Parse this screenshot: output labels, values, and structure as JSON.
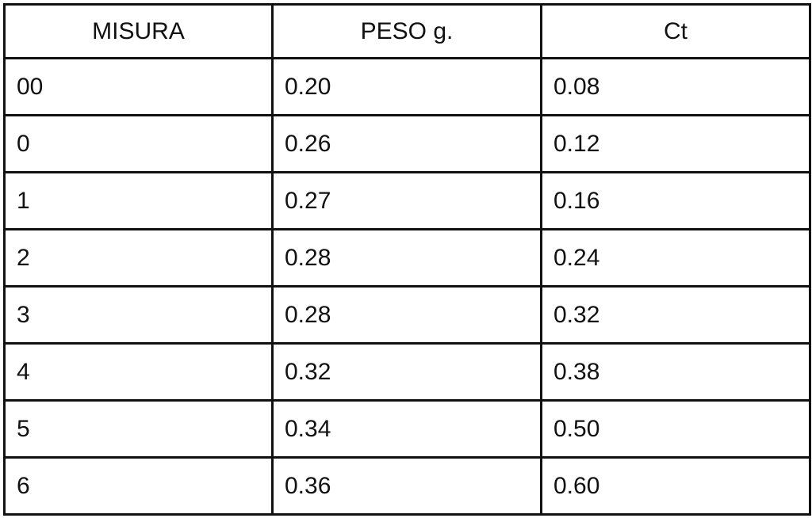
{
  "table": {
    "headers": [
      "MISURA",
      "PESO g.",
      "Ct"
    ],
    "rows": [
      [
        "00",
        "0.20",
        "0.08"
      ],
      [
        "0",
        "0.26",
        "0.12"
      ],
      [
        "1",
        "0.27",
        "0.16"
      ],
      [
        "2",
        "0.28",
        "0.24"
      ],
      [
        "3",
        "0.28",
        "0.32"
      ],
      [
        "4",
        "0.32",
        "0.38"
      ],
      [
        "5",
        "0.34",
        "0.50"
      ],
      [
        "6",
        "0.36",
        "0.60"
      ]
    ]
  }
}
